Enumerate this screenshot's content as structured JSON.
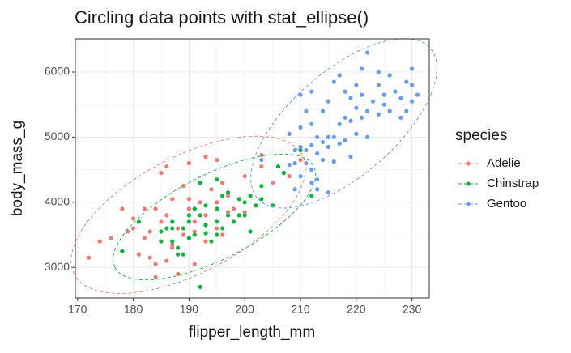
{
  "chart_data": {
    "type": "scatter",
    "title": "Circling data points with stat_ellipse()",
    "x_label": "flipper_length_mm",
    "y_label": "body_mass_g",
    "legend_title": "species",
    "xlim": [
      169.6,
      233.1
    ],
    "ylim": [
      2530,
      6510
    ],
    "xticks": [
      170,
      180,
      190,
      200,
      210,
      220,
      230
    ],
    "yticks": [
      3000,
      4000,
      5000,
      6000
    ],
    "grid": true,
    "legend": "right",
    "series": [
      {
        "name": "Adelie",
        "color": "#F8766D",
        "x": [
          172,
          174,
          176,
          178,
          178,
          180,
          180,
          181,
          181,
          182,
          183,
          184,
          184,
          185,
          185,
          186,
          186,
          187,
          187,
          188,
          188,
          189,
          189,
          190,
          190,
          190,
          191,
          191,
          192,
          193,
          193,
          194,
          195,
          195,
          196,
          196,
          197,
          198,
          199,
          200,
          201,
          202,
          203,
          203,
          205,
          208,
          210,
          183,
          187,
          191,
          184,
          182,
          179,
          186,
          190,
          195,
          193,
          197,
          200
        ],
        "values": [
          3150,
          3400,
          3450,
          3250,
          3900,
          3600,
          3750,
          3700,
          3200,
          3450,
          3550,
          3900,
          3050,
          3700,
          4450,
          3800,
          3100,
          3350,
          4050,
          3600,
          2900,
          3500,
          4250,
          3450,
          3900,
          4600,
          3700,
          3050,
          4000,
          3400,
          3800,
          4200,
          3600,
          4000,
          4300,
          3500,
          4100,
          3900,
          4050,
          4400,
          4100,
          3950,
          4550,
          4725,
          4300,
          4400,
          4650,
          3150,
          3300,
          3550,
          2850,
          3900,
          3550,
          4550,
          4050,
          4650,
          4700,
          3850,
          3850
        ]
      },
      {
        "name": "Chinstrap",
        "color": "#00BA38",
        "x": [
          178,
          181,
          185,
          186,
          187,
          187,
          188,
          189,
          190,
          190,
          191,
          191,
          192,
          193,
          193,
          193,
          194,
          195,
          195,
          195,
          196,
          196,
          197,
          197,
          198,
          199,
          199,
          200,
          200,
          201,
          201,
          202,
          203,
          203,
          205,
          206,
          207,
          210,
          212,
          187,
          192,
          188,
          195,
          192,
          190,
          185,
          189
        ],
        "values": [
          3250,
          3700,
          3550,
          3600,
          3400,
          3700,
          3300,
          3600,
          3700,
          3450,
          3500,
          3900,
          3800,
          3650,
          3950,
          3525,
          3400,
          3700,
          3900,
          3500,
          3600,
          4100,
          3800,
          4150,
          3700,
          3800,
          4050,
          4000,
          3800,
          4100,
          3550,
          3950,
          4250,
          4050,
          3950,
          4550,
          4450,
          4800,
          4100,
          3600,
          2700,
          3200,
          4350,
          4300,
          3800,
          3400,
          3200
        ]
      },
      {
        "name": "Gentoo",
        "color": "#619CFF",
        "x": [
          203,
          208,
          208,
          209,
          209,
          210,
          210,
          210,
          211,
          211,
          211,
          212,
          212,
          212,
          213,
          213,
          213,
          214,
          214,
          214,
          215,
          215,
          215,
          215,
          216,
          216,
          216,
          217,
          217,
          218,
          218,
          218,
          219,
          219,
          220,
          220,
          220,
          221,
          221,
          222,
          222,
          222,
          223,
          224,
          224,
          225,
          225,
          226,
          226,
          227,
          228,
          228,
          229,
          229,
          230,
          230,
          230,
          231,
          224,
          213,
          212,
          209,
          210,
          221,
          219,
          217,
          212
        ],
        "values": [
          4650,
          4575,
          5050,
          4600,
          4200,
          4400,
          4850,
          5150,
          4600,
          4800,
          5400,
          4500,
          4875,
          5200,
          4750,
          4350,
          5000,
          4650,
          4925,
          5400,
          4850,
          5000,
          5550,
          4150,
          5000,
          4625,
          5850,
          4900,
          5200,
          4950,
          5300,
          5700,
          5250,
          5600,
          5050,
          5450,
          5800,
          5300,
          5650,
          5400,
          6300,
          5000,
          5550,
          5350,
          5800,
          5650,
          5500,
          5400,
          5950,
          5700,
          5600,
          5300,
          5850,
          5400,
          6050,
          5800,
          5550,
          5650,
          6000,
          4200,
          4300,
          4800,
          5650,
          6050,
          4700,
          5950,
          5700
        ]
      }
    ]
  }
}
